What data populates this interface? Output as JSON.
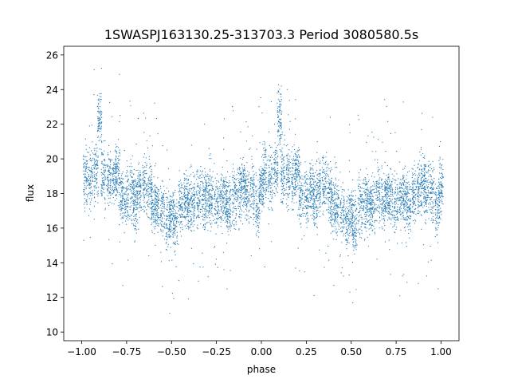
{
  "chart_data": {
    "type": "scatter",
    "title": "1SWASPJ163130.25-313703.3 Period 3080580.5s",
    "xlabel": "phase",
    "ylabel": "flux",
    "xlim": [
      -1.1,
      1.1
    ],
    "ylim": [
      9.5,
      26.5
    ],
    "xticks": [
      -1.0,
      -0.75,
      -0.5,
      -0.25,
      0.0,
      0.25,
      0.5,
      0.75,
      1.0
    ],
    "xtick_labels": [
      "−1.00",
      "−0.75",
      "−0.50",
      "−0.25",
      "0.00",
      "0.25",
      "0.50",
      "0.75",
      "1.00"
    ],
    "yticks": [
      10,
      12,
      14,
      16,
      18,
      20,
      22,
      24,
      26
    ],
    "ytick_labels": [
      "10",
      "12",
      "14",
      "16",
      "18",
      "20",
      "22",
      "24",
      "26"
    ],
    "grid": false,
    "legend": "none",
    "marker_color": "#1f77b4",
    "series": [
      {
        "phase": [
          -0.98,
          -0.95,
          -0.92,
          -0.9,
          -0.88,
          -0.85,
          -0.82,
          -0.8,
          -0.78,
          -0.75,
          -0.72,
          -0.7,
          -0.68,
          -0.65,
          -0.62,
          -0.6,
          -0.58,
          -0.55,
          -0.52,
          -0.5,
          -0.48,
          -0.45,
          -0.42,
          -0.4,
          -0.38,
          -0.35,
          -0.32,
          -0.3,
          -0.28,
          -0.25,
          -0.22,
          -0.2,
          -0.18,
          -0.15,
          -0.12,
          -0.1,
          -0.08,
          -0.05,
          -0.02,
          0.0
        ],
        "flux": [
          19.0,
          18.8,
          19.2,
          22.3,
          19.1,
          19.0,
          18.9,
          19.4,
          17.8,
          17.9,
          18.2,
          17.5,
          18.3,
          18.6,
          18.0,
          17.4,
          17.2,
          17.0,
          16.5,
          16.8,
          16.2,
          17.4,
          17.6,
          17.3,
          17.5,
          17.8,
          17.6,
          17.9,
          17.7,
          17.5,
          17.8,
          17.6,
          17.3,
          17.9,
          18.2,
          18.6,
          18.1,
          18.0,
          17.2,
          18.4
        ]
      }
    ]
  }
}
